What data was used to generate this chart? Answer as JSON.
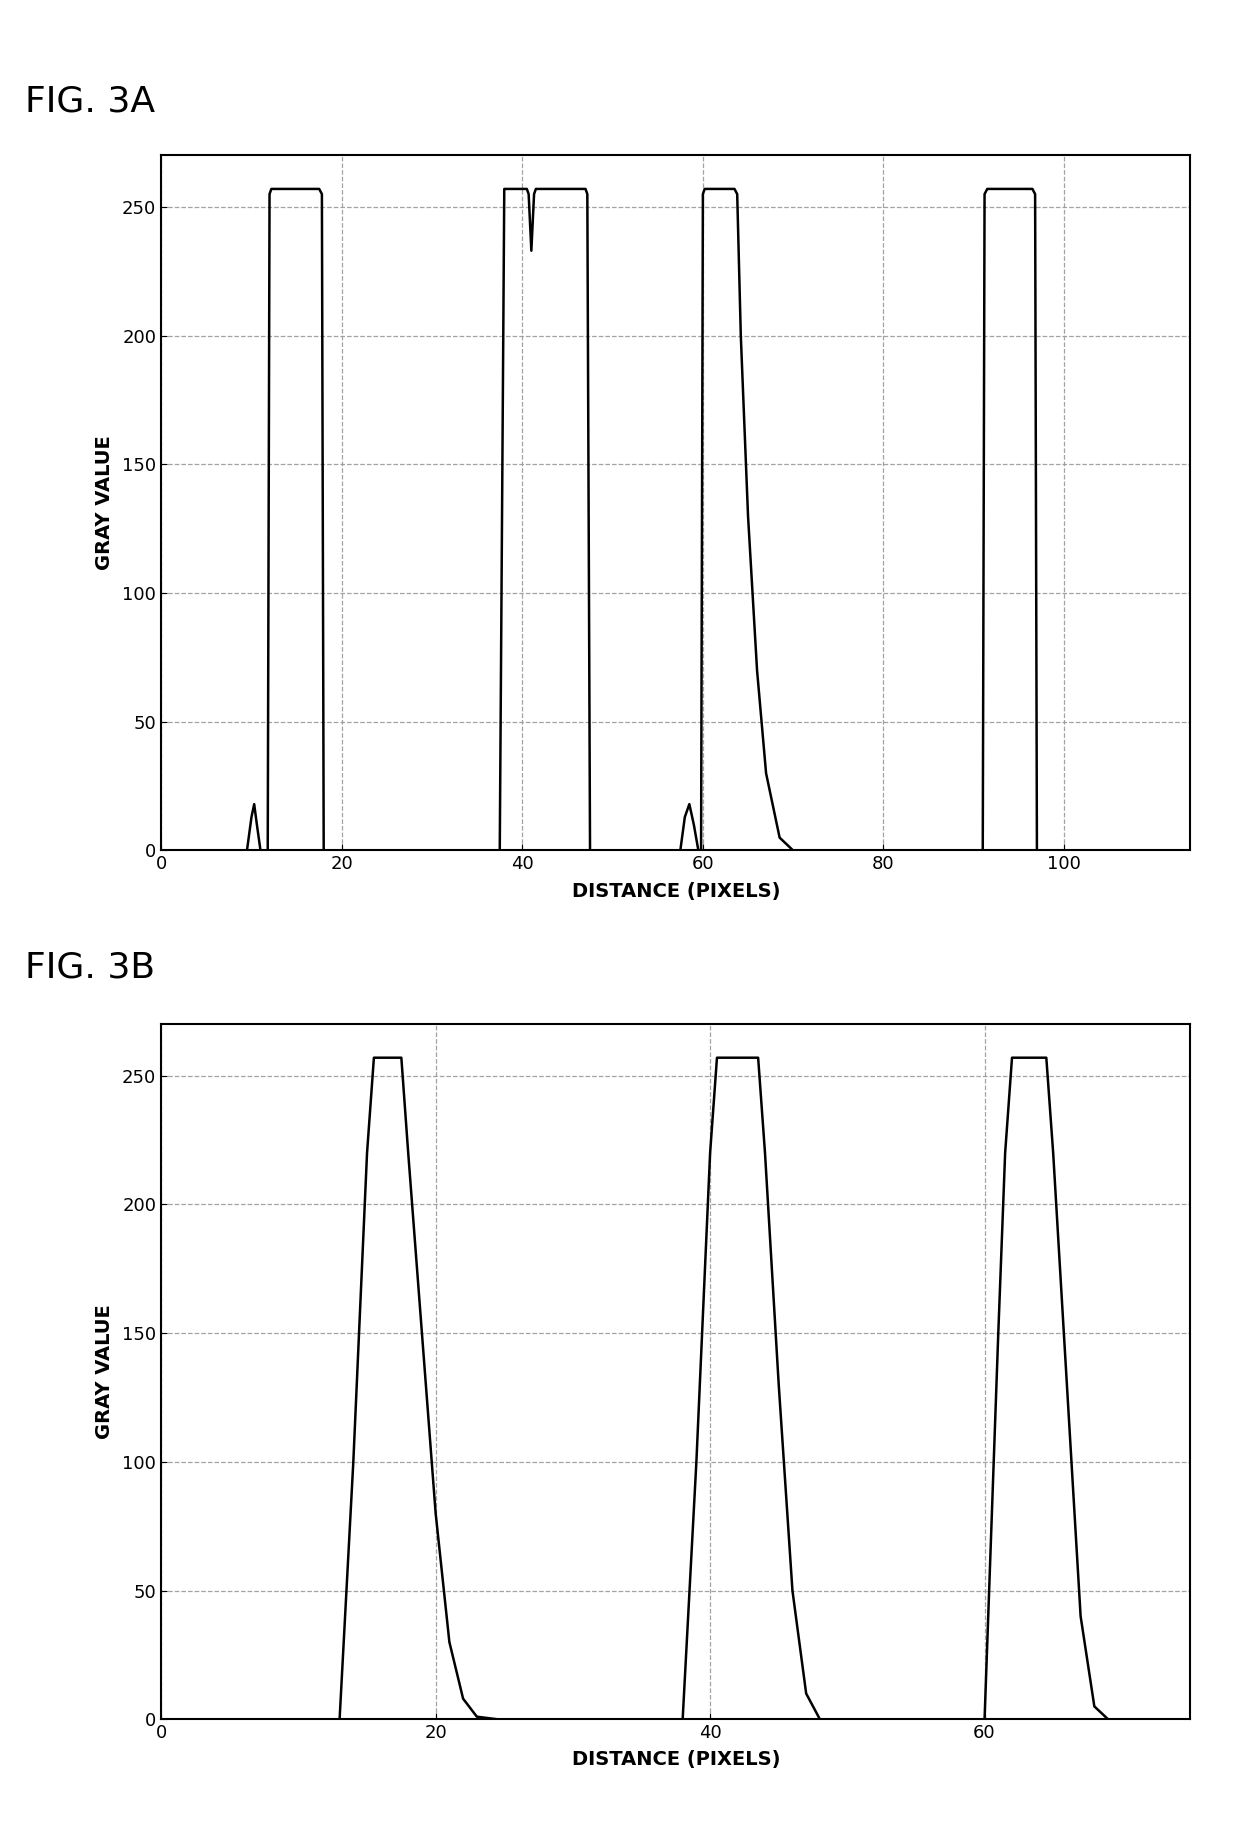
{
  "fig3a": {
    "title": "FIG. 3A",
    "xlabel": "DISTANCE (PIXELS)",
    "ylabel": "GRAY VALUE",
    "xlim": [
      0,
      114
    ],
    "ylim": [
      0,
      270
    ],
    "xticks": [
      0,
      20,
      40,
      60,
      80,
      100
    ],
    "yticks": [
      0,
      50,
      100,
      150,
      200,
      250
    ]
  },
  "fig3b": {
    "title": "FIG. 3B",
    "xlabel": "DISTANCE (PIXELS)",
    "ylabel": "GRAY VALUE",
    "xlim": [
      0,
      75
    ],
    "ylim": [
      0,
      270
    ],
    "xticks": [
      0,
      20,
      40,
      60
    ],
    "yticks": [
      0,
      50,
      100,
      150,
      200,
      250
    ]
  },
  "background_color": "#ffffff",
  "line_color": "#000000",
  "grid_color": "#999999",
  "title_fontsize": 26,
  "label_fontsize": 14,
  "tick_fontsize": 13,
  "linewidth": 1.8
}
